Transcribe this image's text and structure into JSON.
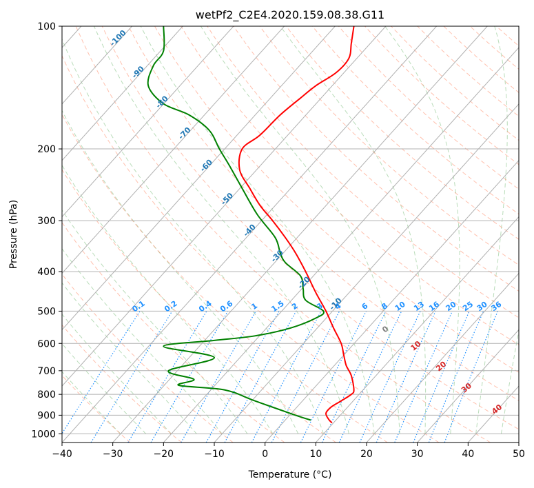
{
  "chart_data": {
    "type": "line",
    "title": "wetPf2_C2E4.2020.159.08.38.G11",
    "xlabel": "Temperature (°C)",
    "ylabel": "Pressure (hPa)",
    "xlim": [
      -40,
      50
    ],
    "ylim": [
      1050,
      100
    ],
    "y_scale": "log",
    "x_ticks": [
      -40,
      -30,
      -20,
      -10,
      0,
      10,
      20,
      30,
      40,
      50
    ],
    "y_ticks": [
      100,
      200,
      300,
      400,
      500,
      600,
      700,
      800,
      900,
      1000
    ],
    "grid": true,
    "series": [
      {
        "role": "temperature",
        "color": "#ff0000",
        "points": [
          [
            13.2,
            940
          ],
          [
            12.5,
            920
          ],
          [
            12.0,
            890
          ],
          [
            13.0,
            860
          ],
          [
            15.0,
            830
          ],
          [
            17.0,
            800
          ],
          [
            17.5,
            780
          ],
          [
            17.0,
            720
          ],
          [
            16.0,
            680
          ],
          [
            15.5,
            640
          ],
          [
            15.0,
            600
          ],
          [
            13.5,
            550
          ],
          [
            12.0,
            500
          ],
          [
            10.0,
            450
          ],
          [
            8.0,
            400
          ],
          [
            6.0,
            360
          ],
          [
            4.0,
            330
          ],
          [
            1.5,
            300
          ],
          [
            -1.0,
            275
          ],
          [
            -3.0,
            250
          ],
          [
            -5.0,
            225
          ],
          [
            -4.5,
            200
          ],
          [
            -1.0,
            185
          ],
          [
            3.0,
            165
          ],
          [
            7.0,
            150
          ],
          [
            10.0,
            140
          ],
          [
            14.0,
            130
          ],
          [
            16.5,
            120
          ],
          [
            17.0,
            110
          ],
          [
            17.5,
            100
          ]
        ]
      },
      {
        "role": "dewpoint",
        "color": "#008000",
        "points": [
          [
            9.0,
            925
          ],
          [
            6.0,
            900
          ],
          [
            -2.0,
            830
          ],
          [
            -8.0,
            780
          ],
          [
            -17.0,
            760
          ],
          [
            -14.0,
            735
          ],
          [
            -19.0,
            700
          ],
          [
            -10.0,
            650
          ],
          [
            -20.0,
            610
          ],
          [
            -10.0,
            590
          ],
          [
            -2.0,
            575
          ],
          [
            5.0,
            550
          ],
          [
            10.0,
            520
          ],
          [
            11.5,
            500
          ],
          [
            8.0,
            470
          ],
          [
            7.5,
            440
          ],
          [
            7.0,
            410
          ],
          [
            4.0,
            380
          ],
          [
            3.0,
            360
          ],
          [
            2.0,
            330
          ],
          [
            -1.5,
            290
          ],
          [
            -4.5,
            250
          ],
          [
            -7.0,
            220
          ],
          [
            -9.0,
            200
          ],
          [
            -11.0,
            180
          ],
          [
            -15.0,
            165
          ],
          [
            -20.0,
            155
          ],
          [
            -23.0,
            140
          ],
          [
            -22.0,
            125
          ],
          [
            -20.0,
            115
          ],
          [
            -20.0,
            100
          ]
        ]
      }
    ],
    "isotherm_labels": [
      "-100",
      "-90",
      "-80",
      "-70",
      "-60",
      "-50",
      "-40",
      "-30",
      "-20",
      "-10"
    ],
    "mixing_ratio_labels": [
      "0.1",
      "0.2",
      "0.4",
      "0.6",
      "1",
      "1.5",
      "2",
      "3",
      "4",
      "6",
      "8",
      "10",
      "13",
      "16",
      "20",
      "25",
      "30",
      "36"
    ],
    "dry_adiabat_labels": [
      "0",
      "10",
      "20",
      "30",
      "40"
    ],
    "colors": {
      "temperature": "#ff0000",
      "dewpoint": "#008000",
      "isotherm_label": "#1f77b4",
      "mixing_ratio": "#1e90ff",
      "dry_adiabat": "#ff8c69",
      "moist_adiabat": "#7fbf7f",
      "grid": "#b0b0b0"
    }
  }
}
